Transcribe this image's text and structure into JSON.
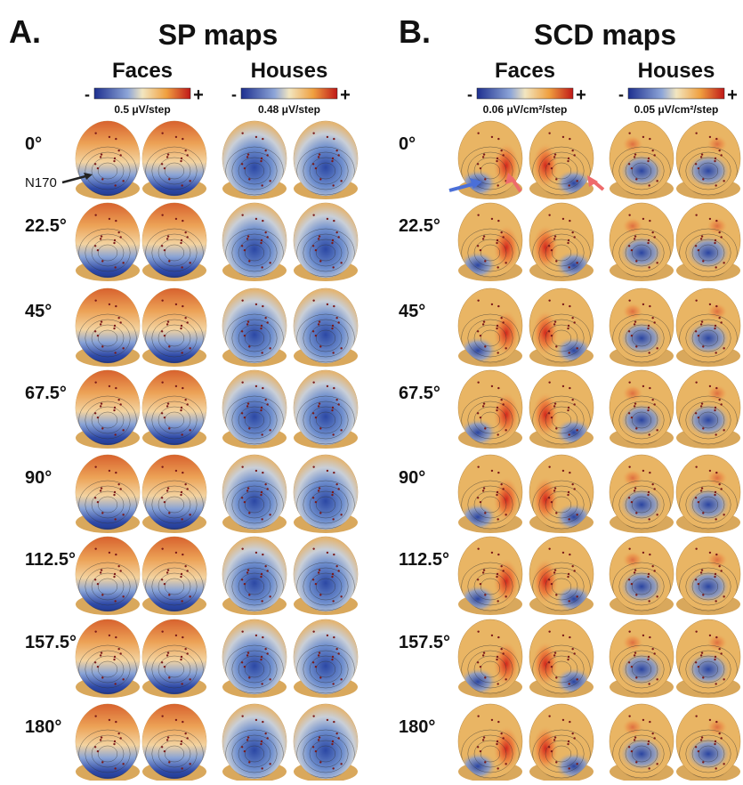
{
  "panels": [
    {
      "letter": "A.",
      "title": "SP maps",
      "conditions": [
        {
          "name": "Faces",
          "scale_min": "-",
          "scale_max": "+",
          "scale": "0.5 μV/step"
        },
        {
          "name": "Houses",
          "scale_min": "-",
          "scale_max": "+",
          "scale": "0.48 μV/step"
        }
      ],
      "rows": [
        "0°",
        "22.5°",
        "45°",
        "67.5°",
        "90°",
        "112.5°",
        "157.5°",
        "180°"
      ]
    },
    {
      "letter": "B.",
      "title": "SCD maps",
      "conditions": [
        {
          "name": "Faces",
          "scale_min": "-",
          "scale_max": "+",
          "scale": "0.06 μV/cm²/step"
        },
        {
          "name": "Houses",
          "scale_min": "-",
          "scale_max": "+",
          "scale": "0.05 μV/cm²/step"
        }
      ],
      "rows": [
        "0°",
        "22.5°",
        "45°",
        "67.5°",
        "90°",
        "112.5°",
        "157.5°",
        "180°"
      ]
    }
  ],
  "annotation": "N170"
}
